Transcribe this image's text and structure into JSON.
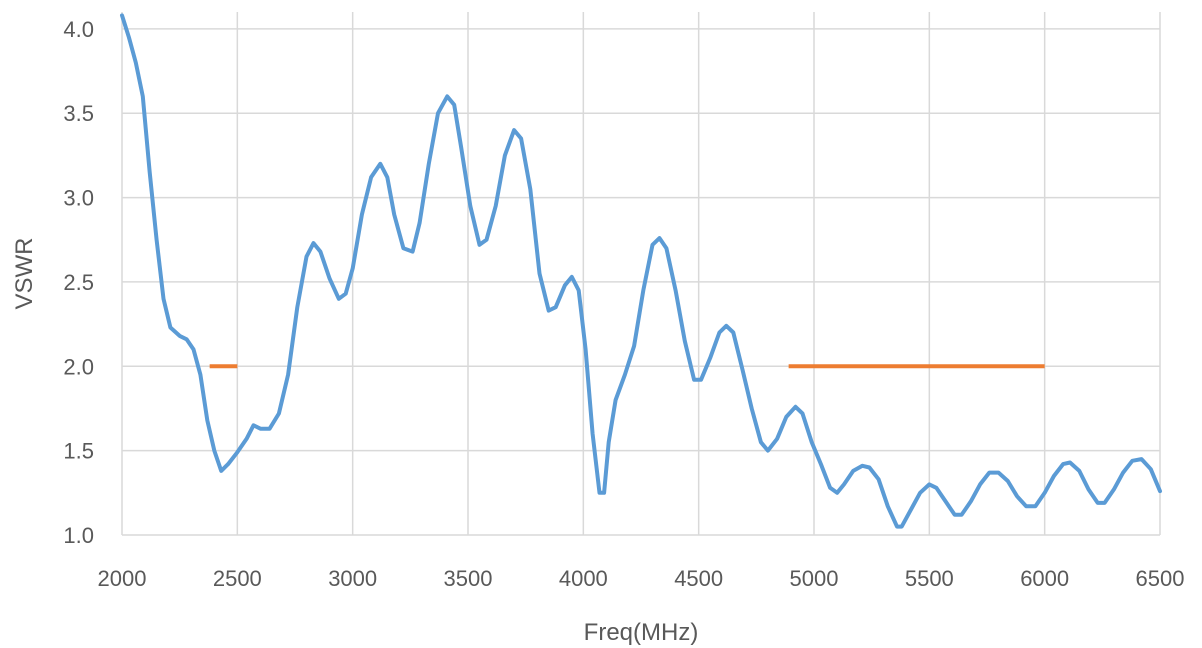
{
  "chart_data": {
    "type": "line",
    "title": "",
    "xlabel": "Freq(MHz)",
    "ylabel": "VSWR",
    "xlim": [
      2000,
      6500
    ],
    "ylim": [
      1.0,
      4.1
    ],
    "x_ticks": [
      2000,
      2500,
      3000,
      3500,
      4000,
      4500,
      5000,
      5500,
      6000,
      6500
    ],
    "y_ticks": [
      1.0,
      1.5,
      2.0,
      2.5,
      3.0,
      3.5,
      4.0
    ],
    "x_tick_labels": [
      "2000",
      "2500",
      "3000",
      "3500",
      "4000",
      "4500",
      "5000",
      "5500",
      "6000",
      "6500"
    ],
    "y_tick_labels": [
      "1.0",
      "1.5",
      "2.0",
      "2.5",
      "3.0",
      "3.5",
      "4.0"
    ],
    "grid": true,
    "legend": "none",
    "series": [
      {
        "color": "#5b9bd5",
        "points": [
          [
            2000,
            4.08
          ],
          [
            2030,
            3.95
          ],
          [
            2060,
            3.8
          ],
          [
            2090,
            3.6
          ],
          [
            2120,
            3.15
          ],
          [
            2150,
            2.75
          ],
          [
            2180,
            2.4
          ],
          [
            2210,
            2.23
          ],
          [
            2250,
            2.18
          ],
          [
            2280,
            2.16
          ],
          [
            2310,
            2.1
          ],
          [
            2340,
            1.95
          ],
          [
            2370,
            1.68
          ],
          [
            2400,
            1.5
          ],
          [
            2430,
            1.38
          ],
          [
            2460,
            1.42
          ],
          [
            2500,
            1.49
          ],
          [
            2540,
            1.57
          ],
          [
            2570,
            1.65
          ],
          [
            2600,
            1.63
          ],
          [
            2640,
            1.63
          ],
          [
            2680,
            1.72
          ],
          [
            2720,
            1.95
          ],
          [
            2760,
            2.35
          ],
          [
            2800,
            2.65
          ],
          [
            2830,
            2.73
          ],
          [
            2860,
            2.68
          ],
          [
            2900,
            2.52
          ],
          [
            2940,
            2.4
          ],
          [
            2970,
            2.43
          ],
          [
            3000,
            2.58
          ],
          [
            3040,
            2.9
          ],
          [
            3080,
            3.12
          ],
          [
            3120,
            3.2
          ],
          [
            3150,
            3.12
          ],
          [
            3180,
            2.9
          ],
          [
            3220,
            2.7
          ],
          [
            3260,
            2.68
          ],
          [
            3290,
            2.85
          ],
          [
            3330,
            3.2
          ],
          [
            3370,
            3.5
          ],
          [
            3410,
            3.6
          ],
          [
            3440,
            3.55
          ],
          [
            3470,
            3.3
          ],
          [
            3510,
            2.95
          ],
          [
            3550,
            2.72
          ],
          [
            3580,
            2.75
          ],
          [
            3620,
            2.95
          ],
          [
            3660,
            3.25
          ],
          [
            3700,
            3.4
          ],
          [
            3730,
            3.35
          ],
          [
            3770,
            3.05
          ],
          [
            3810,
            2.55
          ],
          [
            3850,
            2.33
          ],
          [
            3880,
            2.35
          ],
          [
            3920,
            2.48
          ],
          [
            3950,
            2.53
          ],
          [
            3980,
            2.45
          ],
          [
            4010,
            2.1
          ],
          [
            4040,
            1.6
          ],
          [
            4070,
            1.25
          ],
          [
            4090,
            1.25
          ],
          [
            4110,
            1.55
          ],
          [
            4140,
            1.8
          ],
          [
            4180,
            1.95
          ],
          [
            4220,
            2.12
          ],
          [
            4260,
            2.45
          ],
          [
            4300,
            2.72
          ],
          [
            4330,
            2.76
          ],
          [
            4360,
            2.7
          ],
          [
            4400,
            2.45
          ],
          [
            4440,
            2.15
          ],
          [
            4480,
            1.92
          ],
          [
            4510,
            1.92
          ],
          [
            4550,
            2.05
          ],
          [
            4590,
            2.2
          ],
          [
            4620,
            2.24
          ],
          [
            4650,
            2.2
          ],
          [
            4690,
            1.98
          ],
          [
            4730,
            1.75
          ],
          [
            4770,
            1.55
          ],
          [
            4800,
            1.5
          ],
          [
            4840,
            1.57
          ],
          [
            4880,
            1.7
          ],
          [
            4920,
            1.76
          ],
          [
            4950,
            1.72
          ],
          [
            4990,
            1.55
          ],
          [
            5030,
            1.42
          ],
          [
            5070,
            1.28
          ],
          [
            5100,
            1.25
          ],
          [
            5130,
            1.3
          ],
          [
            5170,
            1.38
          ],
          [
            5210,
            1.41
          ],
          [
            5240,
            1.4
          ],
          [
            5280,
            1.33
          ],
          [
            5320,
            1.17
          ],
          [
            5360,
            1.05
          ],
          [
            5380,
            1.05
          ],
          [
            5420,
            1.15
          ],
          [
            5460,
            1.25
          ],
          [
            5500,
            1.3
          ],
          [
            5530,
            1.28
          ],
          [
            5570,
            1.2
          ],
          [
            5610,
            1.12
          ],
          [
            5640,
            1.12
          ],
          [
            5680,
            1.2
          ],
          [
            5720,
            1.3
          ],
          [
            5760,
            1.37
          ],
          [
            5800,
            1.37
          ],
          [
            5840,
            1.32
          ],
          [
            5880,
            1.23
          ],
          [
            5920,
            1.17
          ],
          [
            5960,
            1.17
          ],
          [
            6000,
            1.25
          ],
          [
            6040,
            1.35
          ],
          [
            6080,
            1.42
          ],
          [
            6110,
            1.43
          ],
          [
            6150,
            1.38
          ],
          [
            6190,
            1.27
          ],
          [
            6230,
            1.19
          ],
          [
            6260,
            1.19
          ],
          [
            6300,
            1.27
          ],
          [
            6340,
            1.37
          ],
          [
            6380,
            1.44
          ],
          [
            6420,
            1.45
          ],
          [
            6460,
            1.39
          ],
          [
            6500,
            1.26
          ]
        ]
      },
      {
        "color": "#ed7d31",
        "segments": [
          [
            [
              2380,
              2.0
            ],
            [
              2500,
              2.0
            ]
          ],
          [
            [
              4890,
              2.0
            ],
            [
              6000,
              2.0
            ]
          ]
        ]
      }
    ]
  }
}
